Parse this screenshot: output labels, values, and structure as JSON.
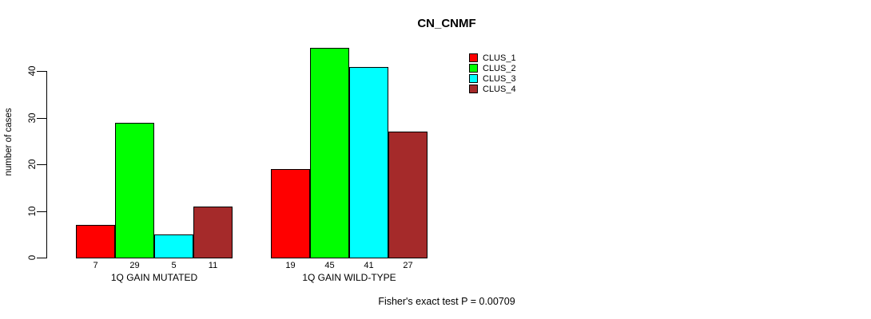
{
  "title": "CN_CNMF",
  "chart_data": {
    "type": "bar",
    "title": "CN_CNMF",
    "ylabel": "number of cases",
    "xlabel": "",
    "ylim": [
      0,
      47
    ],
    "yticks": [
      0,
      10,
      20,
      30,
      40
    ],
    "grid": false,
    "legend_position": "top-right-outside",
    "categories": [
      "1Q GAIN MUTATED",
      "1Q GAIN WILD-TYPE"
    ],
    "series": [
      {
        "name": "CLUS_1",
        "color": "#FF0000",
        "values": [
          7,
          19
        ]
      },
      {
        "name": "CLUS_2",
        "color": "#00FF00",
        "values": [
          29,
          45
        ]
      },
      {
        "name": "CLUS_3",
        "color": "#00FFFF",
        "values": [
          5,
          41
        ]
      },
      {
        "name": "CLUS_4",
        "color": "#A52A2A",
        "values": [
          11,
          27
        ]
      }
    ],
    "bar_value_labels_shown": true,
    "annotation": "Fisher's exact test P = 0.00709"
  }
}
